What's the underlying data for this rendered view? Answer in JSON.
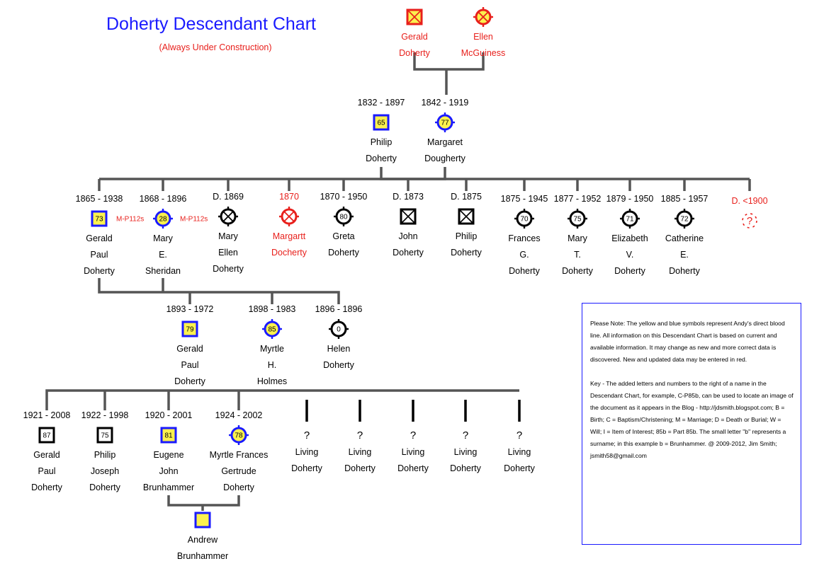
{
  "title": "Doherty Descendant Chart",
  "subtitle": "(Always Under Construction)",
  "people": [
    {
      "id": "gerald_sr",
      "dates": "",
      "name": [
        "Gerald",
        "Doherty"
      ],
      "red": true,
      "symbol": "square-x",
      "badge": "",
      "fill": "#fbf14e",
      "stroke": "#e8201c"
    },
    {
      "id": "ellen",
      "dates": "",
      "name": [
        "Ellen",
        "McGuiness"
      ],
      "red": true,
      "symbol": "circle-x",
      "badge": "",
      "fill": "#fbf14e",
      "stroke": "#e8201c"
    },
    {
      "id": "philip_1832",
      "dates": "1832 - 1897",
      "name": [
        "Philip",
        "Doherty"
      ],
      "red": false,
      "symbol": "square",
      "badge": "65",
      "fill": "#fbf14e",
      "stroke": "#1a1aff"
    },
    {
      "id": "margaret",
      "dates": "1842 - 1919",
      "name": [
        "Margaret",
        "Dougherty"
      ],
      "red": false,
      "symbol": "circle",
      "badge": "77",
      "fill": "#fbf14e",
      "stroke": "#1a1aff"
    },
    {
      "id": "gerald_1865",
      "dates": "1865 - 1938",
      "name": [
        "Gerald",
        "Paul",
        "Doherty"
      ],
      "red": false,
      "symbol": "square",
      "badge": "73",
      "fill": "#fbf14e",
      "stroke": "#1a1aff",
      "mark": "M-P112s"
    },
    {
      "id": "mary_sheridan",
      "dates": "1868 - 1896",
      "name": [
        "Mary",
        "E.",
        "Sheridan"
      ],
      "red": false,
      "symbol": "circle",
      "badge": "28",
      "fill": "#fbf14e",
      "stroke": "#1a1aff",
      "mark": "M-P112s"
    },
    {
      "id": "mary_ellen",
      "dates": "D. 1869",
      "name": [
        "Mary",
        "Ellen",
        "Doherty"
      ],
      "red": false,
      "symbol": "circle-x",
      "badge": "",
      "fill": "#ffffff",
      "stroke": "#000000"
    },
    {
      "id": "margartt",
      "dates": "1870",
      "name": [
        "Margartt",
        "Docherty"
      ],
      "red": true,
      "symbol": "circle-x",
      "badge": "",
      "fill": "#ffffff",
      "stroke": "#e8201c"
    },
    {
      "id": "greta",
      "dates": "1870 - 1950",
      "name": [
        "Greta",
        "Doherty"
      ],
      "red": false,
      "symbol": "circle",
      "badge": "80",
      "fill": "#ffffff",
      "stroke": "#000000"
    },
    {
      "id": "john_1873",
      "dates": "D. 1873",
      "name": [
        "John",
        "Doherty"
      ],
      "red": false,
      "symbol": "square-x",
      "badge": "",
      "fill": "#ffffff",
      "stroke": "#000000"
    },
    {
      "id": "philip_1875",
      "dates": "D. 1875",
      "name": [
        "Philip",
        "Doherty"
      ],
      "red": false,
      "symbol": "square-x",
      "badge": "",
      "fill": "#ffffff",
      "stroke": "#000000"
    },
    {
      "id": "frances",
      "dates": "1875 - 1945",
      "name": [
        "Frances",
        "G.",
        "Doherty"
      ],
      "red": false,
      "symbol": "circle",
      "badge": "70",
      "fill": "#ffffff",
      "stroke": "#000000"
    },
    {
      "id": "mary_t",
      "dates": "1877 - 1952",
      "name": [
        "Mary",
        "T.",
        "Doherty"
      ],
      "red": false,
      "symbol": "circle",
      "badge": "75",
      "fill": "#ffffff",
      "stroke": "#000000"
    },
    {
      "id": "elizabeth",
      "dates": "1879 - 1950",
      "name": [
        "Elizabeth",
        "V.",
        "Doherty"
      ],
      "red": false,
      "symbol": "circle",
      "badge": "71",
      "fill": "#ffffff",
      "stroke": "#000000"
    },
    {
      "id": "catherine",
      "dates": "1885 - 1957",
      "name": [
        "Catherine",
        "E.",
        "Doherty"
      ],
      "red": false,
      "symbol": "circle",
      "badge": "72",
      "fill": "#ffffff",
      "stroke": "#000000"
    },
    {
      "id": "unknown",
      "dates": "D. <1900",
      "name": [],
      "red": true,
      "symbol": "unknown",
      "badge": "?",
      "fill": "#ffffff",
      "stroke": "#e8201c"
    },
    {
      "id": "gerald_1893",
      "dates": "1893 - 1972",
      "name": [
        "Gerald",
        "Paul",
        "Doherty"
      ],
      "red": false,
      "symbol": "square",
      "badge": "79",
      "fill": "#fbf14e",
      "stroke": "#1a1aff"
    },
    {
      "id": "myrtle",
      "dates": "1898 - 1983",
      "name": [
        "Myrtle",
        "H.",
        "Holmes"
      ],
      "red": false,
      "symbol": "circle",
      "badge": "85",
      "fill": "#fbf14e",
      "stroke": "#1a1aff"
    },
    {
      "id": "helen",
      "dates": "1896 - 1896",
      "name": [
        "Helen",
        "Doherty"
      ],
      "red": false,
      "symbol": "circle",
      "badge": "0",
      "fill": "#ffffff",
      "stroke": "#000000"
    },
    {
      "id": "gerald_1921",
      "dates": "1921 - 2008",
      "name": [
        "Gerald",
        "Paul",
        "Doherty"
      ],
      "red": false,
      "symbol": "square",
      "badge": "87",
      "fill": "#ffffff",
      "stroke": "#000000"
    },
    {
      "id": "philip_1922",
      "dates": "1922 - 1998",
      "name": [
        "Philip",
        "Joseph",
        "Doherty"
      ],
      "red": false,
      "symbol": "square",
      "badge": "75",
      "fill": "#ffffff",
      "stroke": "#000000"
    },
    {
      "id": "eugene",
      "dates": "1920 - 2001",
      "name": [
        "Eugene",
        "John",
        "Brunhammer"
      ],
      "red": false,
      "symbol": "square",
      "badge": "81",
      "fill": "#fbf14e",
      "stroke": "#1a1aff"
    },
    {
      "id": "myrtle_frances",
      "dates": "1924 - 2002",
      "name": [
        "Myrtle Frances",
        "Gertrude",
        "Doherty"
      ],
      "red": false,
      "symbol": "circle",
      "badge": "78",
      "fill": "#fbf14e",
      "stroke": "#1a1aff"
    },
    {
      "id": "living1",
      "dates": "",
      "name": [
        "Living",
        "Doherty"
      ],
      "red": false,
      "symbol": "living",
      "badge": "?",
      "fill": "#ffffff",
      "stroke": "#000000"
    },
    {
      "id": "living2",
      "dates": "",
      "name": [
        "Living",
        "Doherty"
      ],
      "red": false,
      "symbol": "living",
      "badge": "?",
      "fill": "#ffffff",
      "stroke": "#000000"
    },
    {
      "id": "living3",
      "dates": "",
      "name": [
        "Living",
        "Doherty"
      ],
      "red": false,
      "symbol": "living",
      "badge": "?",
      "fill": "#ffffff",
      "stroke": "#000000"
    },
    {
      "id": "living4",
      "dates": "",
      "name": [
        "Living",
        "Doherty"
      ],
      "red": false,
      "symbol": "living",
      "badge": "?",
      "fill": "#ffffff",
      "stroke": "#000000"
    },
    {
      "id": "living5",
      "dates": "",
      "name": [
        "Living",
        "Doherty"
      ],
      "red": false,
      "symbol": "living",
      "badge": "?",
      "fill": "#ffffff",
      "stroke": "#000000"
    },
    {
      "id": "andrew",
      "dates": "",
      "name": [
        "Andrew",
        "Brunhammer"
      ],
      "red": false,
      "symbol": "square",
      "badge": "",
      "fill": "#fbf14e",
      "stroke": "#1a1aff"
    }
  ],
  "note": {
    "paragraph1": "Please Note:  The yellow and blue symbols represent Andy's direct blood line.  All information on this Descendant Chart is based on current and available information.  It may change as new and more correct data is discovered.  New and updated data may be entered in red.",
    "paragraph2": "Key - The added letters and numbers to the right of a name in the Descendant Chart, for example, C-P85b, can be used to locate an image of the document as it appears in the Blog - http://jdsmith.blogspot.com; B = Birth; C = Baptism/Christening; M = Marriage; D = Death or Burial; W = Will; I = Item of Interest; 85b = Part 85b. The small letter \"b\" represents a surname; in this example b = Brunhammer.  @ 2009-2012, Jim Smith; jsmith58@gmail.com"
  }
}
